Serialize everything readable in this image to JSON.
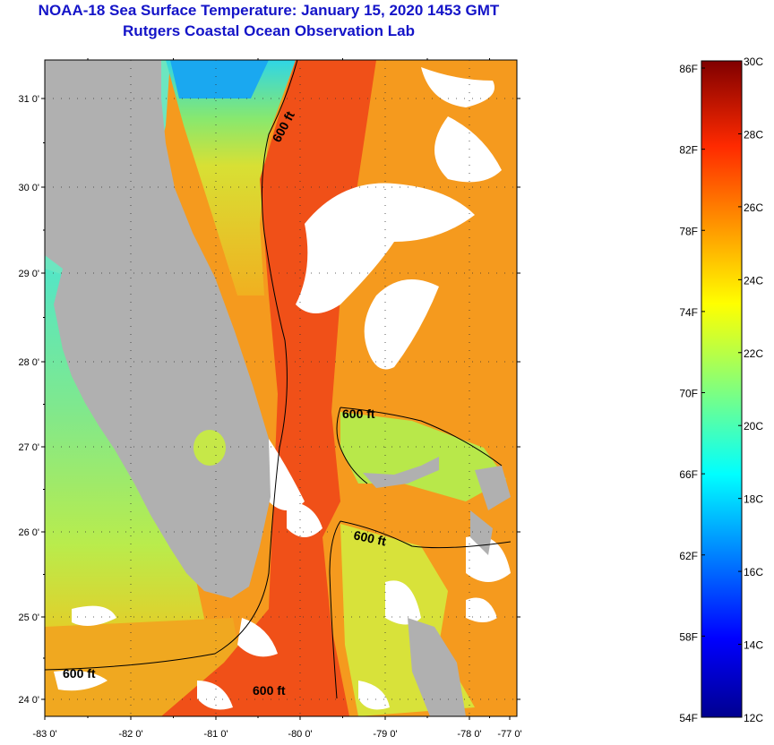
{
  "title": "NOAA-18 Sea Surface Temperature:  January 15, 2020 1453 GMT",
  "subtitle": "Rutgers Coastal Ocean Observation Lab",
  "map": {
    "lat_labels": [
      "31 0'",
      "30 0'",
      "29 0'",
      "28 0'",
      "27 0'",
      "26 0'",
      "25 0'",
      "24 0'"
    ],
    "lon_labels": [
      "-83 0'",
      "-82 0'",
      "-81 0'",
      "-80 0'",
      "-79 0'",
      "-78 0'",
      "-77 0'"
    ],
    "contour_labels": [
      "600 ft",
      "600 ft",
      "600 ft",
      "600 ft",
      "600 ft"
    ]
  },
  "colorbar": {
    "fahrenheit": [
      "86F",
      "82F",
      "78F",
      "74F",
      "70F",
      "66F",
      "62F",
      "58F",
      "54F"
    ],
    "celsius": [
      "30C",
      "28C",
      "26C",
      "24C",
      "22C",
      "20C",
      "18C",
      "16C",
      "14C",
      "12C"
    ]
  },
  "colors": {
    "title": "#1414c8",
    "land": "#b0b0b0",
    "gulf_stream": "#f05018",
    "atlantic": "#f59a1e",
    "gulf_mexico": "#9ee05a"
  }
}
